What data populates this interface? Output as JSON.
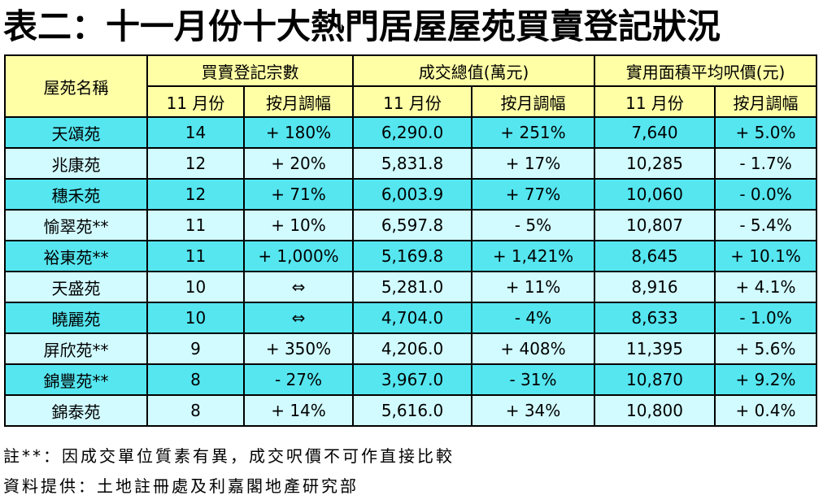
{
  "title": "表二：十一月份十大熱門居屋屋苑買賣登記狀況",
  "table": {
    "header": {
      "estate": "屋苑名稱",
      "group_registrations": "買賣登記宗數",
      "group_value": "成交總值(萬元)",
      "group_price": "實用面積平均呎價(元)",
      "sub_month": "11 月份",
      "sub_change": "按月調幅"
    },
    "rows": [
      {
        "estate": "天頌苑",
        "count": "14",
        "count_change": "+ 180%",
        "value": "6,290.0",
        "value_change": "+ 251%",
        "price": "7,640",
        "price_change": "+ 5.0%"
      },
      {
        "estate": "兆康苑",
        "count": "12",
        "count_change": "+ 20%",
        "value": "5,831.8",
        "value_change": "+ 17%",
        "price": "10,285",
        "price_change": "- 1.7%"
      },
      {
        "estate": "穗禾苑",
        "count": "12",
        "count_change": "+ 71%",
        "value": "6,003.9",
        "value_change": "+ 77%",
        "price": "10,060",
        "price_change": "- 0.0%"
      },
      {
        "estate": "愉翠苑**",
        "count": "11",
        "count_change": "+ 10%",
        "value": "6,597.8",
        "value_change": "- 5%",
        "price": "10,807",
        "price_change": "- 5.4%"
      },
      {
        "estate": "裕東苑**",
        "count": "11",
        "count_change": "+ 1,000%",
        "value": "5,169.8",
        "value_change": "+ 1,421%",
        "price": "8,645",
        "price_change": "+ 10.1%"
      },
      {
        "estate": "天盛苑",
        "count": "10",
        "count_change": "⇔",
        "value": "5,281.0",
        "value_change": "+ 11%",
        "price": "8,916",
        "price_change": "+ 4.1%"
      },
      {
        "estate": "曉麗苑",
        "count": "10",
        "count_change": "⇔",
        "value": "4,704.0",
        "value_change": "- 4%",
        "price": "8,633",
        "price_change": "- 1.0%"
      },
      {
        "estate": "屏欣苑**",
        "count": "9",
        "count_change": "+ 350%",
        "value": "4,206.0",
        "value_change": "+ 408%",
        "price": "11,395",
        "price_change": "+ 5.6%"
      },
      {
        "estate": "錦豐苑**",
        "count": "8",
        "count_change": "- 27%",
        "value": "3,967.0",
        "value_change": "- 31%",
        "price": "10,870",
        "price_change": "+ 9.2%"
      },
      {
        "estate": "錦泰苑",
        "count": "8",
        "count_change": "+ 14%",
        "value": "5,616.0",
        "value_change": "+ 34%",
        "price": "10,800",
        "price_change": "+ 0.4%"
      }
    ]
  },
  "notes": {
    "note1": "註**：因成交單位質素有異，成交呎價不可作直接比較",
    "note2": "資料提供：土地註冊處及利嘉閣地產研究部"
  },
  "colors": {
    "header_bg": "#ffffa6",
    "row_cyan": "#55e6f0",
    "row_light": "#d2fbff"
  }
}
